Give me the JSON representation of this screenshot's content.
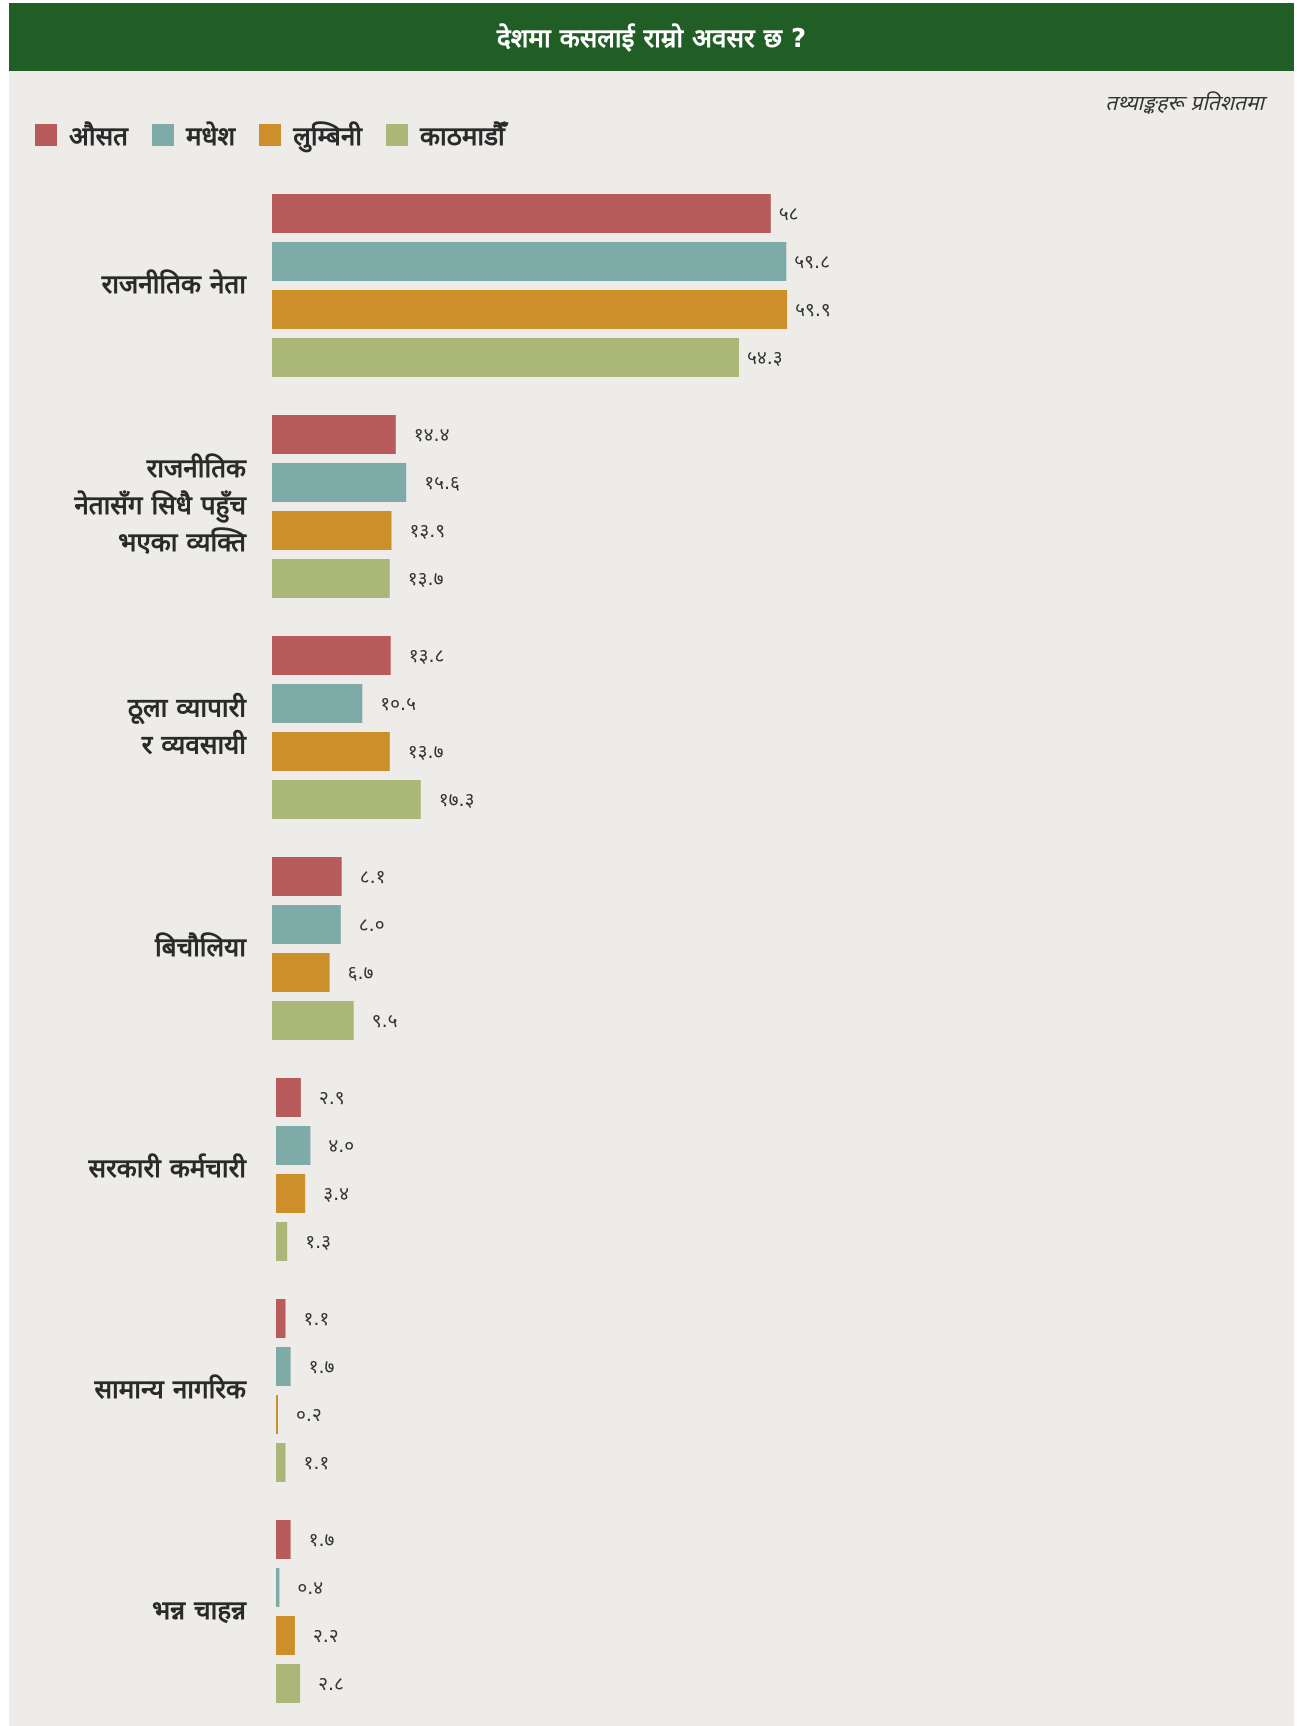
{
  "chart_data": {
    "type": "bar",
    "orientation": "horizontal",
    "title": "देशमा कसलाई राम्रो अवसर छ ?",
    "note": "तथ्याङ्कहरू प्रतिशतमा",
    "legend_position": "top-left",
    "grid": false,
    "categories": [
      [
        "राजनीतिक नेता"
      ],
      [
        "राजनीतिक",
        "नेतासँग सिधै पहुँच",
        "भएका व्यक्ति"
      ],
      [
        "ठूला व्यापारी",
        "र व्यवसायी"
      ],
      [
        "बिचौलिया"
      ],
      [
        "सरकारी कर्मचारी"
      ],
      [
        "सामान्य नागरिक"
      ],
      [
        "भन्न चाहन्न"
      ]
    ],
    "series": [
      {
        "name": "औसत",
        "color": "#b75c5a",
        "values": [
          58,
          14.4,
          13.8,
          8.1,
          2.9,
          1.1,
          1.7
        ],
        "labels": [
          "५८",
          "१४.४",
          "१३.८",
          "८.१",
          "२.९",
          "१.१",
          "१.७"
        ]
      },
      {
        "name": "मधेश",
        "color": "#7eaba7",
        "values": [
          59.8,
          15.6,
          10.5,
          8.0,
          4.0,
          1.7,
          0.4
        ],
        "labels": [
          "५९.८",
          "१५.६",
          "१०.५",
          "८.०",
          "४.०",
          "१.७",
          "०.४"
        ]
      },
      {
        "name": "लुम्बिनी",
        "color": "#cc8f2a",
        "values": [
          59.9,
          13.9,
          13.7,
          6.7,
          3.4,
          0.2,
          2.2
        ],
        "labels": [
          "५९.९",
          "१३.९",
          "१३.७",
          "६.७",
          "३.४",
          "०.२",
          "२.२"
        ]
      },
      {
        "name": "काठमाडौँ",
        "color": "#abb679",
        "values": [
          54.3,
          13.7,
          17.3,
          9.5,
          1.3,
          1.1,
          2.8
        ],
        "labels": [
          "५४.३",
          "१३.७",
          "१७.३",
          "९.५",
          "१.३",
          "१.१",
          "२.८"
        ]
      }
    ],
    "xlim": [
      0,
      60
    ]
  }
}
